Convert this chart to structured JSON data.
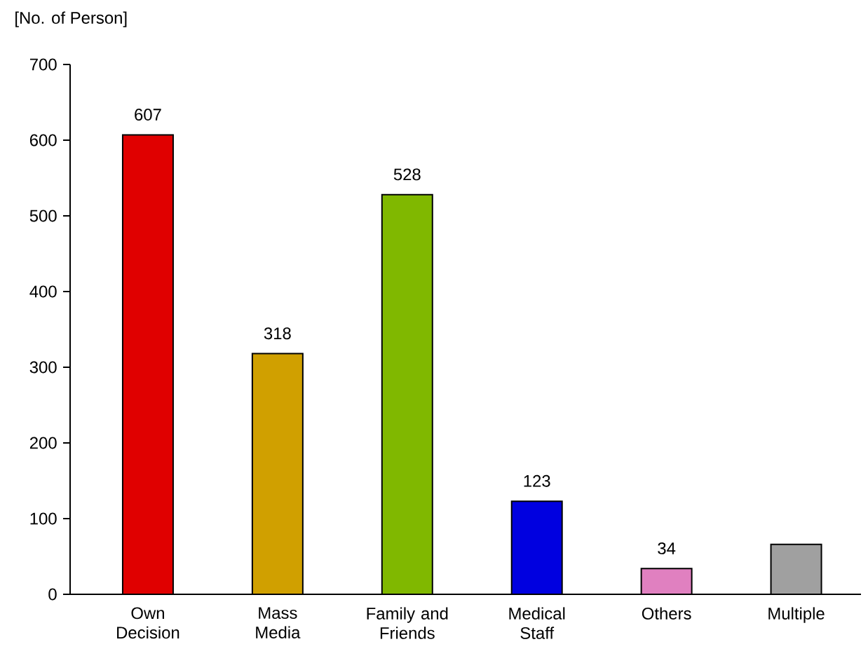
{
  "chart_data": {
    "type": "bar",
    "ylabel": "[No. of Person]",
    "categories": [
      "Own Decision",
      "Mass Media",
      "Family and Friends",
      "Medical Staff",
      "Others",
      "Multiple"
    ],
    "values": [
      607,
      318,
      528,
      123,
      34,
      66
    ],
    "value_labels": [
      "607",
      "318",
      "528",
      "123",
      "34",
      null
    ],
    "colors": [
      "#e00000",
      "#d0a000",
      "#80b800",
      "#0000e0",
      "#e080c0",
      "#a0a0a0"
    ],
    "ylim": [
      0,
      700
    ],
    "yticks": [
      0,
      100,
      200,
      300,
      400,
      500,
      600,
      700
    ]
  }
}
